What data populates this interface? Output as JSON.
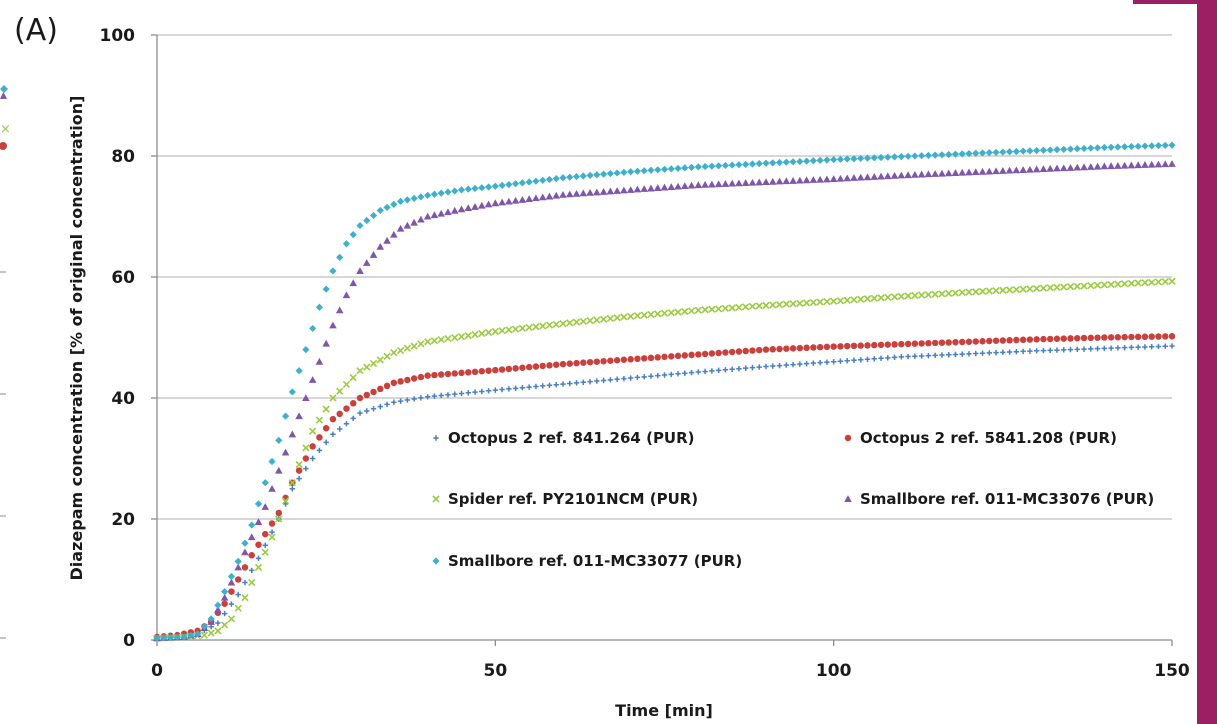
{
  "panel_label": "(A)",
  "colors": {
    "accent_bar": "#9c1f64",
    "grid": "#bfbfbf",
    "axis": "#8c8c8c"
  },
  "chart_data": {
    "type": "scatter",
    "title": "",
    "xlabel": "Time [min]",
    "ylabel": "Diazepam concentration [% of original concentration]",
    "xlim": [
      0,
      150
    ],
    "ylim": [
      0,
      100
    ],
    "xticks": [
      0,
      50,
      100,
      150
    ],
    "yticks": [
      0,
      20,
      40,
      60,
      80,
      100
    ],
    "grid": "horizontal",
    "legend": "inside-lower-right",
    "series": [
      {
        "name": "Octopus 2 ref. 841.264 (PUR)",
        "color": "#4a7fc1",
        "marker": "plus",
        "points": [
          [
            0,
            0.5
          ],
          [
            3,
            0.7
          ],
          [
            6,
            1.0
          ],
          [
            9,
            2.8
          ],
          [
            12,
            7.5
          ],
          [
            15,
            13.5
          ],
          [
            18,
            20
          ],
          [
            20,
            25
          ],
          [
            23,
            30
          ],
          [
            26,
            34
          ],
          [
            30,
            37.5
          ],
          [
            35,
            39.3
          ],
          [
            40,
            40.2
          ],
          [
            50,
            41.3
          ],
          [
            60,
            42.3
          ],
          [
            70,
            43.3
          ],
          [
            80,
            44.3
          ],
          [
            90,
            45.2
          ],
          [
            100,
            46
          ],
          [
            110,
            46.8
          ],
          [
            120,
            47.3
          ],
          [
            130,
            47.8
          ],
          [
            140,
            48.2
          ],
          [
            150,
            48.6
          ]
        ]
      },
      {
        "name": "Octopus 2 ref. 5841.208 (PUR)",
        "color": "#c9403c",
        "marker": "circle",
        "points": [
          [
            0,
            0.5
          ],
          [
            3,
            0.8
          ],
          [
            6,
            1.5
          ],
          [
            8,
            3
          ],
          [
            10,
            6
          ],
          [
            12,
            10
          ],
          [
            14,
            14
          ],
          [
            16,
            17.5
          ],
          [
            18,
            21
          ],
          [
            20,
            26
          ],
          [
            23,
            32
          ],
          [
            26,
            36.5
          ],
          [
            30,
            40
          ],
          [
            35,
            42.5
          ],
          [
            40,
            43.7
          ],
          [
            50,
            44.6
          ],
          [
            60,
            45.6
          ],
          [
            70,
            46.4
          ],
          [
            80,
            47.2
          ],
          [
            90,
            48
          ],
          [
            100,
            48.5
          ],
          [
            110,
            48.9
          ],
          [
            120,
            49.3
          ],
          [
            130,
            49.7
          ],
          [
            140,
            50
          ],
          [
            150,
            50.2
          ]
        ]
      },
      {
        "name": "Spider ref. PY2101NCM (PUR)",
        "color": "#9acb3e",
        "marker": "x",
        "points": [
          [
            0,
            0.3
          ],
          [
            4,
            0.5
          ],
          [
            7,
            0.8
          ],
          [
            9,
            1.5
          ],
          [
            11,
            3.5
          ],
          [
            13,
            7
          ],
          [
            15,
            12
          ],
          [
            17,
            17
          ],
          [
            19,
            23
          ],
          [
            21,
            29
          ],
          [
            23,
            34.5
          ],
          [
            26,
            40
          ],
          [
            30,
            44.5
          ],
          [
            35,
            47.5
          ],
          [
            40,
            49.3
          ],
          [
            50,
            51
          ],
          [
            60,
            52.3
          ],
          [
            70,
            53.5
          ],
          [
            80,
            54.5
          ],
          [
            90,
            55.3
          ],
          [
            100,
            56
          ],
          [
            110,
            56.8
          ],
          [
            120,
            57.5
          ],
          [
            130,
            58.1
          ],
          [
            140,
            58.7
          ],
          [
            150,
            59.3
          ]
        ]
      },
      {
        "name": "Smallbore ref. 011-MC33076 (PUR)",
        "color": "#7f56a8",
        "marker": "triangle",
        "points": [
          [
            0,
            0.3
          ],
          [
            4,
            0.5
          ],
          [
            6,
            1
          ],
          [
            8,
            3
          ],
          [
            10,
            7
          ],
          [
            12,
            12
          ],
          [
            14,
            17
          ],
          [
            16,
            22
          ],
          [
            18,
            28
          ],
          [
            20,
            34
          ],
          [
            22,
            40
          ],
          [
            24,
            46
          ],
          [
            26,
            52
          ],
          [
            28,
            57
          ],
          [
            30,
            61
          ],
          [
            33,
            65
          ],
          [
            36,
            68
          ],
          [
            40,
            70
          ],
          [
            45,
            71.2
          ],
          [
            50,
            72.2
          ],
          [
            60,
            73.6
          ],
          [
            70,
            74.4
          ],
          [
            80,
            75.2
          ],
          [
            90,
            75.7
          ],
          [
            100,
            76.2
          ],
          [
            110,
            76.8
          ],
          [
            120,
            77.3
          ],
          [
            130,
            77.8
          ],
          [
            140,
            78.3
          ],
          [
            150,
            78.7
          ]
        ]
      },
      {
        "name": "Smallbore ref. 011-MC33077 (PUR)",
        "color": "#3fb0cb",
        "marker": "diamond",
        "points": [
          [
            0,
            0.3
          ],
          [
            4,
            0.5
          ],
          [
            6,
            1
          ],
          [
            8,
            3.5
          ],
          [
            10,
            8
          ],
          [
            12,
            13
          ],
          [
            14,
            19
          ],
          [
            16,
            26
          ],
          [
            18,
            33
          ],
          [
            20,
            41
          ],
          [
            22,
            48
          ],
          [
            24,
            55
          ],
          [
            26,
            61
          ],
          [
            28,
            65.5
          ],
          [
            30,
            68.5
          ],
          [
            33,
            71
          ],
          [
            36,
            72.5
          ],
          [
            40,
            73.5
          ],
          [
            45,
            74.4
          ],
          [
            50,
            75
          ],
          [
            60,
            76.4
          ],
          [
            70,
            77.4
          ],
          [
            80,
            78.2
          ],
          [
            90,
            78.8
          ],
          [
            100,
            79.4
          ],
          [
            110,
            79.9
          ],
          [
            120,
            80.4
          ],
          [
            130,
            80.9
          ],
          [
            140,
            81.4
          ],
          [
            150,
            81.8
          ]
        ]
      }
    ]
  }
}
